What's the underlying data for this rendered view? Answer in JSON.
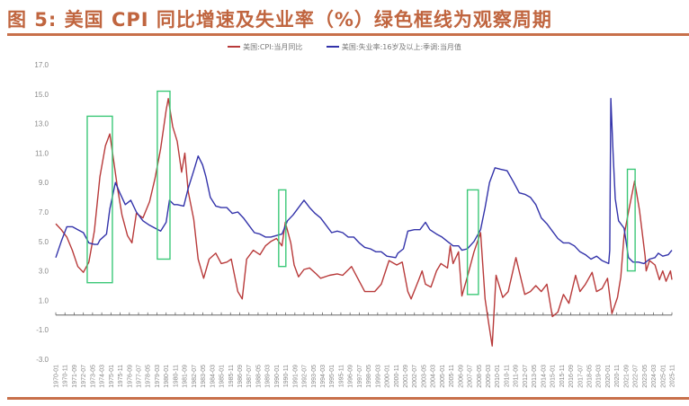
{
  "title": "图 5: 美国 CPI 同比增速及失业率（%）绿色框线为观察周期",
  "colors": {
    "title": "#c0653f",
    "cpi": "#b83a3a",
    "unemployment": "#3333aa",
    "box": "#3cc878"
  },
  "chart_data": {
    "type": "line",
    "title": "图 5: 美国 CPI 同比增速及失业率（%）绿色框线为观察周期",
    "xlabel": "",
    "ylabel": "%",
    "ylim": [
      -3,
      17
    ],
    "xlim": [
      1970.0,
      2025.833
    ],
    "grid": false,
    "legend_position": "top-center",
    "yticks": [
      "17.0",
      "15.0",
      "13.0",
      "11.0",
      "9.0",
      "7.0",
      "5.0",
      "3.0",
      "1.0",
      "-1.0",
      "-3.0"
    ],
    "ytick_values": [
      17,
      15,
      13,
      11,
      9,
      7,
      5,
      3,
      1,
      -1,
      -3
    ],
    "xticks": [
      "1970-01",
      "1970-11",
      "1971-09",
      "1972-07",
      "1973-05",
      "1974-03",
      "1975-01",
      "1975-11",
      "1976-09",
      "1977-07",
      "1978-05",
      "1979-03",
      "1980-01",
      "1980-11",
      "1981-09",
      "1982-07",
      "1983-05",
      "1984-03",
      "1985-01",
      "1985-11",
      "1986-09",
      "1987-07",
      "1988-05",
      "1989-03",
      "1990-01",
      "1990-11",
      "1991-09",
      "1992-07",
      "1993-05",
      "1994-03",
      "1995-01",
      "1995-11",
      "1996-09",
      "1997-07",
      "1998-05",
      "1999-03",
      "2000-01",
      "2000-11",
      "2001-09",
      "2002-07",
      "2003-05",
      "2004-03",
      "2005-01",
      "2005-11",
      "2006-09",
      "2007-07",
      "2008-05",
      "2009-03",
      "2010-01",
      "2010-11",
      "2011-09",
      "2012-07",
      "2013-05",
      "2014-03",
      "2015-01",
      "2015-11",
      "2016-09",
      "2017-07",
      "2018-05",
      "2019-03",
      "2020-01",
      "2020-11",
      "2021-09",
      "2022-07",
      "2023-05",
      "2024-03",
      "2025-01",
      "2025-11"
    ],
    "series": [
      {
        "name": "美国:CPI:当月同比",
        "color": "#b83a3a",
        "x": [
          1970.0,
          1970.5,
          1971.0,
          1971.5,
          1972.0,
          1972.5,
          1973.0,
          1973.5,
          1974.0,
          1974.5,
          1974.9,
          1975.3,
          1975.6,
          1976.0,
          1976.5,
          1976.9,
          1977.3,
          1977.9,
          1978.5,
          1979.0,
          1979.5,
          1980.0,
          1980.2,
          1980.6,
          1981.0,
          1981.4,
          1981.7,
          1982.0,
          1982.5,
          1982.9,
          1983.4,
          1983.9,
          1984.5,
          1985.0,
          1985.5,
          1985.9,
          1986.5,
          1986.9,
          1987.3,
          1987.9,
          1988.5,
          1989.0,
          1989.5,
          1990.0,
          1990.5,
          1990.8,
          1991.3,
          1991.6,
          1992.0,
          1992.5,
          1993.0,
          1993.6,
          1994.0,
          1994.8,
          1995.5,
          1996.0,
          1996.8,
          1997.5,
          1998.0,
          1998.9,
          1999.5,
          2000.2,
          2000.9,
          2001.4,
          2001.9,
          2002.2,
          2002.9,
          2003.2,
          2003.5,
          2004.0,
          2004.5,
          2004.9,
          2005.5,
          2005.75,
          2006.0,
          2006.5,
          2006.8,
          2007.3,
          2007.9,
          2008.5,
          2008.9,
          2009.2,
          2009.55,
          2009.9,
          2010.5,
          2011.0,
          2011.7,
          2012.5,
          2013.0,
          2013.5,
          2014.0,
          2014.5,
          2015.0,
          2015.5,
          2016.0,
          2016.5,
          2017.1,
          2017.5,
          2018.0,
          2018.6,
          2019.0,
          2019.5,
          2020.0,
          2020.4,
          2020.9,
          2021.2,
          2021.5,
          2021.9,
          2022.45,
          2022.9,
          2023.4,
          2023.5,
          2023.8,
          2024.3,
          2024.7,
          2025.0,
          2025.3,
          2025.7,
          2025.83
        ],
        "values": [
          6.2,
          5.8,
          5.3,
          4.4,
          3.3,
          2.9,
          3.6,
          5.7,
          9.4,
          11.5,
          12.3,
          10.2,
          8.6,
          6.8,
          5.4,
          4.9,
          6.9,
          6.6,
          7.7,
          9.3,
          11.3,
          13.9,
          14.7,
          12.8,
          11.8,
          9.7,
          11.0,
          8.4,
          6.5,
          3.8,
          2.5,
          3.8,
          4.2,
          3.5,
          3.6,
          3.8,
          1.6,
          1.1,
          3.8,
          4.4,
          4.1,
          4.7,
          5.0,
          5.2,
          4.7,
          6.3,
          4.9,
          3.4,
          2.6,
          3.1,
          3.2,
          2.8,
          2.5,
          2.7,
          2.8,
          2.7,
          3.3,
          2.3,
          1.6,
          1.6,
          2.1,
          3.7,
          3.4,
          3.6,
          1.6,
          1.1,
          2.4,
          3.0,
          2.1,
          1.9,
          3.0,
          3.5,
          3.2,
          4.7,
          3.5,
          4.3,
          1.3,
          2.6,
          4.3,
          5.6,
          1.1,
          -0.4,
          -2.1,
          2.7,
          1.2,
          1.6,
          3.9,
          1.4,
          1.6,
          2.0,
          1.6,
          2.1,
          -0.1,
          0.2,
          1.4,
          0.8,
          2.7,
          1.6,
          2.1,
          2.9,
          1.6,
          1.8,
          2.5,
          0.1,
          1.2,
          2.6,
          5.4,
          7.0,
          9.1,
          7.1,
          4.0,
          3.0,
          3.7,
          3.4,
          2.4,
          3.0,
          2.3,
          3.0,
          2.4
        ]
      },
      {
        "name": "美国:失业率:16岁及以上:季调:当月值",
        "color": "#3333aa",
        "x": [
          1970.0,
          1970.5,
          1971.0,
          1971.5,
          1972.0,
          1972.5,
          1973.0,
          1973.5,
          1973.8,
          1974.0,
          1974.6,
          1974.9,
          1975.4,
          1975.8,
          1976.3,
          1976.8,
          1977.3,
          1977.9,
          1978.5,
          1979.0,
          1979.5,
          1980.0,
          1980.3,
          1980.7,
          1981.0,
          1981.6,
          1982.0,
          1982.5,
          1982.9,
          1983.3,
          1983.6,
          1984.0,
          1984.5,
          1985.0,
          1985.5,
          1986.0,
          1986.5,
          1987.0,
          1987.5,
          1988.0,
          1988.5,
          1989.0,
          1989.5,
          1990.0,
          1990.5,
          1991.0,
          1991.5,
          1992.5,
          1993.0,
          1993.5,
          1994.0,
          1994.5,
          1995.0,
          1995.5,
          1996.0,
          1996.5,
          1997.0,
          1997.5,
          1998.0,
          1998.5,
          1999.0,
          1999.5,
          2000.0,
          2000.8,
          2001.0,
          2001.5,
          2001.9,
          2002.5,
          2003.0,
          2003.5,
          2003.9,
          2004.5,
          2005.0,
          2005.5,
          2006.0,
          2006.5,
          2006.8,
          2007.3,
          2007.9,
          2008.5,
          2008.9,
          2009.3,
          2009.8,
          2010.3,
          2010.9,
          2011.5,
          2012.0,
          2012.5,
          2013.0,
          2013.5,
          2014.0,
          2014.5,
          2015.0,
          2015.5,
          2016.0,
          2016.5,
          2017.0,
          2017.5,
          2018.0,
          2018.5,
          2019.0,
          2019.5,
          2020.1,
          2020.2,
          2020.3,
          2020.5,
          2020.7,
          2021.0,
          2021.5,
          2021.9,
          2022.3,
          2022.8,
          2023.3,
          2023.8,
          2024.3,
          2024.6,
          2025.0,
          2025.5,
          2025.83
        ],
        "values": [
          3.9,
          5.0,
          6.0,
          6.0,
          5.8,
          5.6,
          4.9,
          4.8,
          4.8,
          5.1,
          5.5,
          7.2,
          9.0,
          8.3,
          7.5,
          7.8,
          7.0,
          6.4,
          6.1,
          5.9,
          5.7,
          6.3,
          7.8,
          7.5,
          7.5,
          7.4,
          8.6,
          9.8,
          10.8,
          10.2,
          9.4,
          8.0,
          7.4,
          7.3,
          7.3,
          6.9,
          7.0,
          6.6,
          6.1,
          5.6,
          5.5,
          5.3,
          5.3,
          5.4,
          5.5,
          6.4,
          6.8,
          7.8,
          7.3,
          6.9,
          6.6,
          6.1,
          5.6,
          5.7,
          5.6,
          5.3,
          5.3,
          4.9,
          4.6,
          4.5,
          4.3,
          4.3,
          4.0,
          3.9,
          4.2,
          4.5,
          5.7,
          5.8,
          5.8,
          6.3,
          5.8,
          5.5,
          5.3,
          5.0,
          4.7,
          4.7,
          4.4,
          4.5,
          5.0,
          5.8,
          7.3,
          9.0,
          10.0,
          9.9,
          9.8,
          9.0,
          8.3,
          8.2,
          8.0,
          7.5,
          6.6,
          6.2,
          5.7,
          5.2,
          4.9,
          4.9,
          4.7,
          4.3,
          4.1,
          3.8,
          4.0,
          3.7,
          3.5,
          4.4,
          14.7,
          11.0,
          7.9,
          6.4,
          5.9,
          3.9,
          3.6,
          3.6,
          3.5,
          3.8,
          3.9,
          4.2,
          4.0,
          4.1,
          4.4
        ]
      }
    ],
    "observation_boxes": [
      {
        "x0": 1972.85,
        "x1": 1975.13,
        "y0": 2.2,
        "y1": 13.5
      },
      {
        "x0": 1979.2,
        "x1": 1980.35,
        "y0": 3.8,
        "y1": 15.2
      },
      {
        "x0": 1990.2,
        "x1": 1990.85,
        "y0": 3.3,
        "y1": 8.5
      },
      {
        "x0": 2007.3,
        "x1": 2008.3,
        "y0": 1.4,
        "y1": 8.5
      },
      {
        "x0": 2021.8,
        "x1": 2022.5,
        "y0": 3.0,
        "y1": 9.9
      }
    ]
  }
}
